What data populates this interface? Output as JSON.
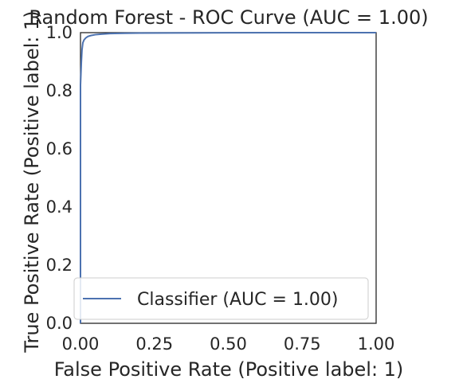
{
  "chart_data": {
    "type": "line",
    "title": "Random Forest - ROC Curve (AUC = 1.00)",
    "xlabel": "False Positive Rate (Positive label: 1)",
    "ylabel": "True Positive Rate (Positive label: 1)",
    "xlim": [
      0,
      1
    ],
    "ylim": [
      0,
      1
    ],
    "x_ticks": [
      "0.00",
      "0.25",
      "0.50",
      "0.75",
      "1.00"
    ],
    "y_ticks": [
      "0.0",
      "0.2",
      "0.4",
      "0.6",
      "0.8",
      "1.0"
    ],
    "x_tick_values": [
      0,
      0.25,
      0.5,
      0.75,
      1.0
    ],
    "y_tick_values": [
      0,
      0.2,
      0.4,
      0.6,
      0.8,
      1.0
    ],
    "grid": false,
    "legend_position": "lower-right",
    "series": [
      {
        "name": "Classifier (AUC = 1.00)",
        "color": "#4c72b0",
        "x": [
          0,
          0,
          0.003,
          0.005,
          0.008,
          0.012,
          0.018,
          0.025,
          0.035,
          0.05,
          0.07,
          0.1,
          0.15,
          0.2,
          0.3,
          0.5,
          0.7,
          1.0
        ],
        "y": [
          0,
          0.82,
          0.9,
          0.94,
          0.965,
          0.975,
          0.982,
          0.987,
          0.99,
          0.993,
          0.995,
          0.997,
          0.998,
          0.9985,
          0.999,
          0.9995,
          1.0,
          1.0
        ]
      }
    ]
  }
}
